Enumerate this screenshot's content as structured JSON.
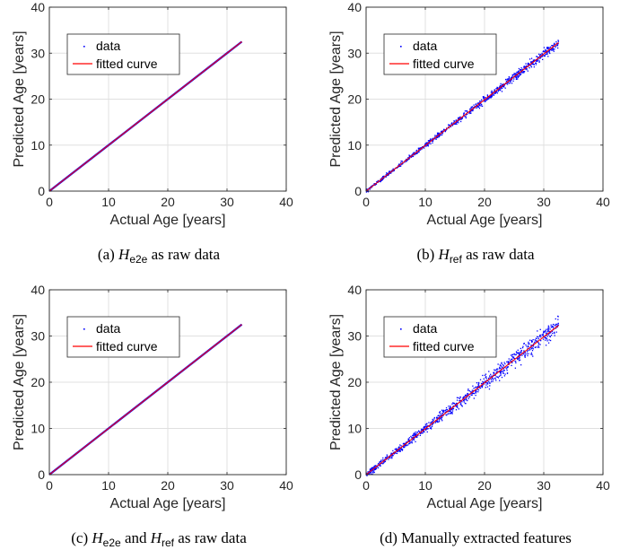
{
  "chart_data": [
    {
      "id": "a",
      "type": "scatter",
      "xlabel": "Actual Age [years]",
      "ylabel": "Predicted Age [years]",
      "xlim": [
        0,
        40
      ],
      "ylim": [
        0,
        40
      ],
      "xticks": [
        "0",
        "10",
        "20",
        "30",
        "40"
      ],
      "yticks": [
        "0",
        "10",
        "20",
        "30",
        "40"
      ],
      "grid": true,
      "legend_position": "upper-left",
      "series": [
        {
          "name": "data",
          "kind": "points",
          "color": "#0000ff",
          "x_range": [
            0,
            32.5
          ],
          "scatter_spread": 0.0
        },
        {
          "name": "fitted curve",
          "kind": "line",
          "color": "#ff0000",
          "x": [
            0,
            32.5
          ],
          "y": [
            0,
            32.5
          ]
        }
      ],
      "caption": {
        "label": "(a)",
        "sym": "H",
        "sub": "e2e",
        "text": "as raw data"
      }
    },
    {
      "id": "b",
      "type": "scatter",
      "xlabel": "Actual Age [years]",
      "ylabel": "Predicted Age [years]",
      "xlim": [
        0,
        40
      ],
      "ylim": [
        0,
        40
      ],
      "xticks": [
        "0",
        "10",
        "20",
        "30",
        "40"
      ],
      "yticks": [
        "0",
        "10",
        "20",
        "30",
        "40"
      ],
      "grid": true,
      "legend_position": "upper-left",
      "series": [
        {
          "name": "data",
          "kind": "points",
          "color": "#0000ff",
          "x_range": [
            0,
            32.5
          ],
          "scatter_spread": 0.35
        },
        {
          "name": "fitted curve",
          "kind": "line",
          "color": "#ff0000",
          "x": [
            0,
            32.5
          ],
          "y": [
            0,
            32.3
          ]
        }
      ],
      "caption": {
        "label": "(b)",
        "sym": "H",
        "sub": "ref",
        "text": "as raw data"
      }
    },
    {
      "id": "c",
      "type": "scatter",
      "xlabel": "Actual Age [years]",
      "ylabel": "Predicted Age [years]",
      "xlim": [
        0,
        40
      ],
      "ylim": [
        0,
        40
      ],
      "xticks": [
        "0",
        "10",
        "20",
        "30",
        "40"
      ],
      "yticks": [
        "0",
        "10",
        "20",
        "30",
        "40"
      ],
      "grid": true,
      "legend_position": "upper-left",
      "series": [
        {
          "name": "data",
          "kind": "points",
          "color": "#0000ff",
          "x_range": [
            0,
            32.5
          ],
          "scatter_spread": 0.0
        },
        {
          "name": "fitted curve",
          "kind": "line",
          "color": "#ff0000",
          "x": [
            0,
            32.5
          ],
          "y": [
            0,
            32.5
          ]
        }
      ],
      "caption": {
        "label": "(c)",
        "sym": "H",
        "sub": "e2e",
        "text": "and",
        "sym2": "H",
        "sub2": "ref",
        "text2": "as raw data"
      }
    },
    {
      "id": "d",
      "type": "scatter",
      "xlabel": "Actual Age [years]",
      "ylabel": "Predicted Age [years]",
      "xlim": [
        0,
        40
      ],
      "ylim": [
        0,
        40
      ],
      "xticks": [
        "0",
        "10",
        "20",
        "30",
        "40"
      ],
      "yticks": [
        "0",
        "10",
        "20",
        "30",
        "40"
      ],
      "grid": true,
      "legend_position": "upper-left",
      "series": [
        {
          "name": "data",
          "kind": "points",
          "color": "#0000ff",
          "x_range": [
            0,
            32.5
          ],
          "scatter_spread": 0.7
        },
        {
          "name": "fitted curve",
          "kind": "line",
          "color": "#ff0000",
          "x": [
            0,
            32.5
          ],
          "y": [
            0,
            32.3
          ]
        }
      ],
      "caption": {
        "label": "(d)",
        "text": "Manually extracted features"
      }
    }
  ]
}
